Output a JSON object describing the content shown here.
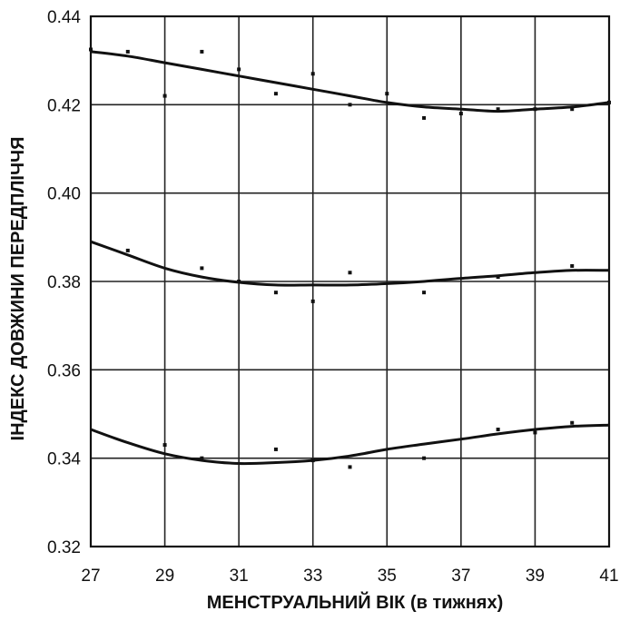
{
  "chart_data": {
    "type": "line",
    "title": "",
    "xlabel": "МЕНСТРУАЛЬНИЙ ВІК (в тижнях)",
    "ylabel": "ІНДЕКС ДОВЖИНИ ПЕРЕДПЛІЧЧЯ",
    "xlim": [
      27,
      41
    ],
    "ylim": [
      0.32,
      0.44
    ],
    "xticks": [
      "27",
      "29",
      "31",
      "33",
      "35",
      "37",
      "39",
      "41"
    ],
    "yticks": [
      "0.32",
      "0.34",
      "0.36",
      "0.38",
      "0.40",
      "0.42",
      "0.44"
    ],
    "grid": true,
    "legend": "none",
    "series": [
      {
        "x": [
          27,
          28,
          29,
          30,
          31,
          32,
          33,
          34,
          35,
          36,
          37,
          38,
          39,
          40,
          41
        ],
        "y": [
          0.432,
          0.431,
          0.4295,
          0.428,
          0.4265,
          0.425,
          0.4235,
          0.422,
          0.4205,
          0.4195,
          0.419,
          0.4185,
          0.419,
          0.4195,
          0.4205
        ]
      },
      {
        "x": [
          27,
          28,
          29,
          30,
          31,
          32,
          33,
          34,
          35,
          36,
          37,
          38,
          39,
          40,
          41
        ],
        "y": [
          0.389,
          0.386,
          0.383,
          0.381,
          0.3798,
          0.3792,
          0.3792,
          0.3792,
          0.3795,
          0.38,
          0.3807,
          0.3813,
          0.382,
          0.3825,
          0.3825
        ]
      },
      {
        "x": [
          27,
          28,
          29,
          30,
          31,
          32,
          33,
          34,
          35,
          36,
          37,
          38,
          39,
          40,
          41
        ],
        "y": [
          0.3465,
          0.3435,
          0.341,
          0.3395,
          0.3388,
          0.339,
          0.3395,
          0.3405,
          0.342,
          0.3432,
          0.3443,
          0.3455,
          0.3465,
          0.3472,
          0.3475
        ]
      }
    ],
    "points": [
      {
        "x": 27,
        "y": 0.4325
      },
      {
        "x": 28,
        "y": 0.432
      },
      {
        "x": 29,
        "y": 0.422
      },
      {
        "x": 30,
        "y": 0.432
      },
      {
        "x": 31,
        "y": 0.428
      },
      {
        "x": 32,
        "y": 0.4225
      },
      {
        "x": 33,
        "y": 0.427
      },
      {
        "x": 34,
        "y": 0.42
      },
      {
        "x": 35,
        "y": 0.4225
      },
      {
        "x": 36,
        "y": 0.417
      },
      {
        "x": 37,
        "y": 0.418
      },
      {
        "x": 38,
        "y": 0.419
      },
      {
        "x": 39,
        "y": 0.419
      },
      {
        "x": 40,
        "y": 0.419
      },
      {
        "x": 41,
        "y": 0.4205
      },
      {
        "x": 28,
        "y": 0.387
      },
      {
        "x": 30,
        "y": 0.383
      },
      {
        "x": 31,
        "y": 0.38
      },
      {
        "x": 32,
        "y": 0.3775
      },
      {
        "x": 33,
        "y": 0.3755
      },
      {
        "x": 34,
        "y": 0.382
      },
      {
        "x": 36,
        "y": 0.3775
      },
      {
        "x": 38,
        "y": 0.381
      },
      {
        "x": 40,
        "y": 0.3835
      },
      {
        "x": 29,
        "y": 0.343
      },
      {
        "x": 30,
        "y": 0.34
      },
      {
        "x": 32,
        "y": 0.342
      },
      {
        "x": 33,
        "y": 0.3395
      },
      {
        "x": 34,
        "y": 0.338
      },
      {
        "x": 36,
        "y": 0.34
      },
      {
        "x": 38,
        "y": 0.3465
      },
      {
        "x": 39,
        "y": 0.3458
      },
      {
        "x": 40,
        "y": 0.348
      }
    ]
  }
}
